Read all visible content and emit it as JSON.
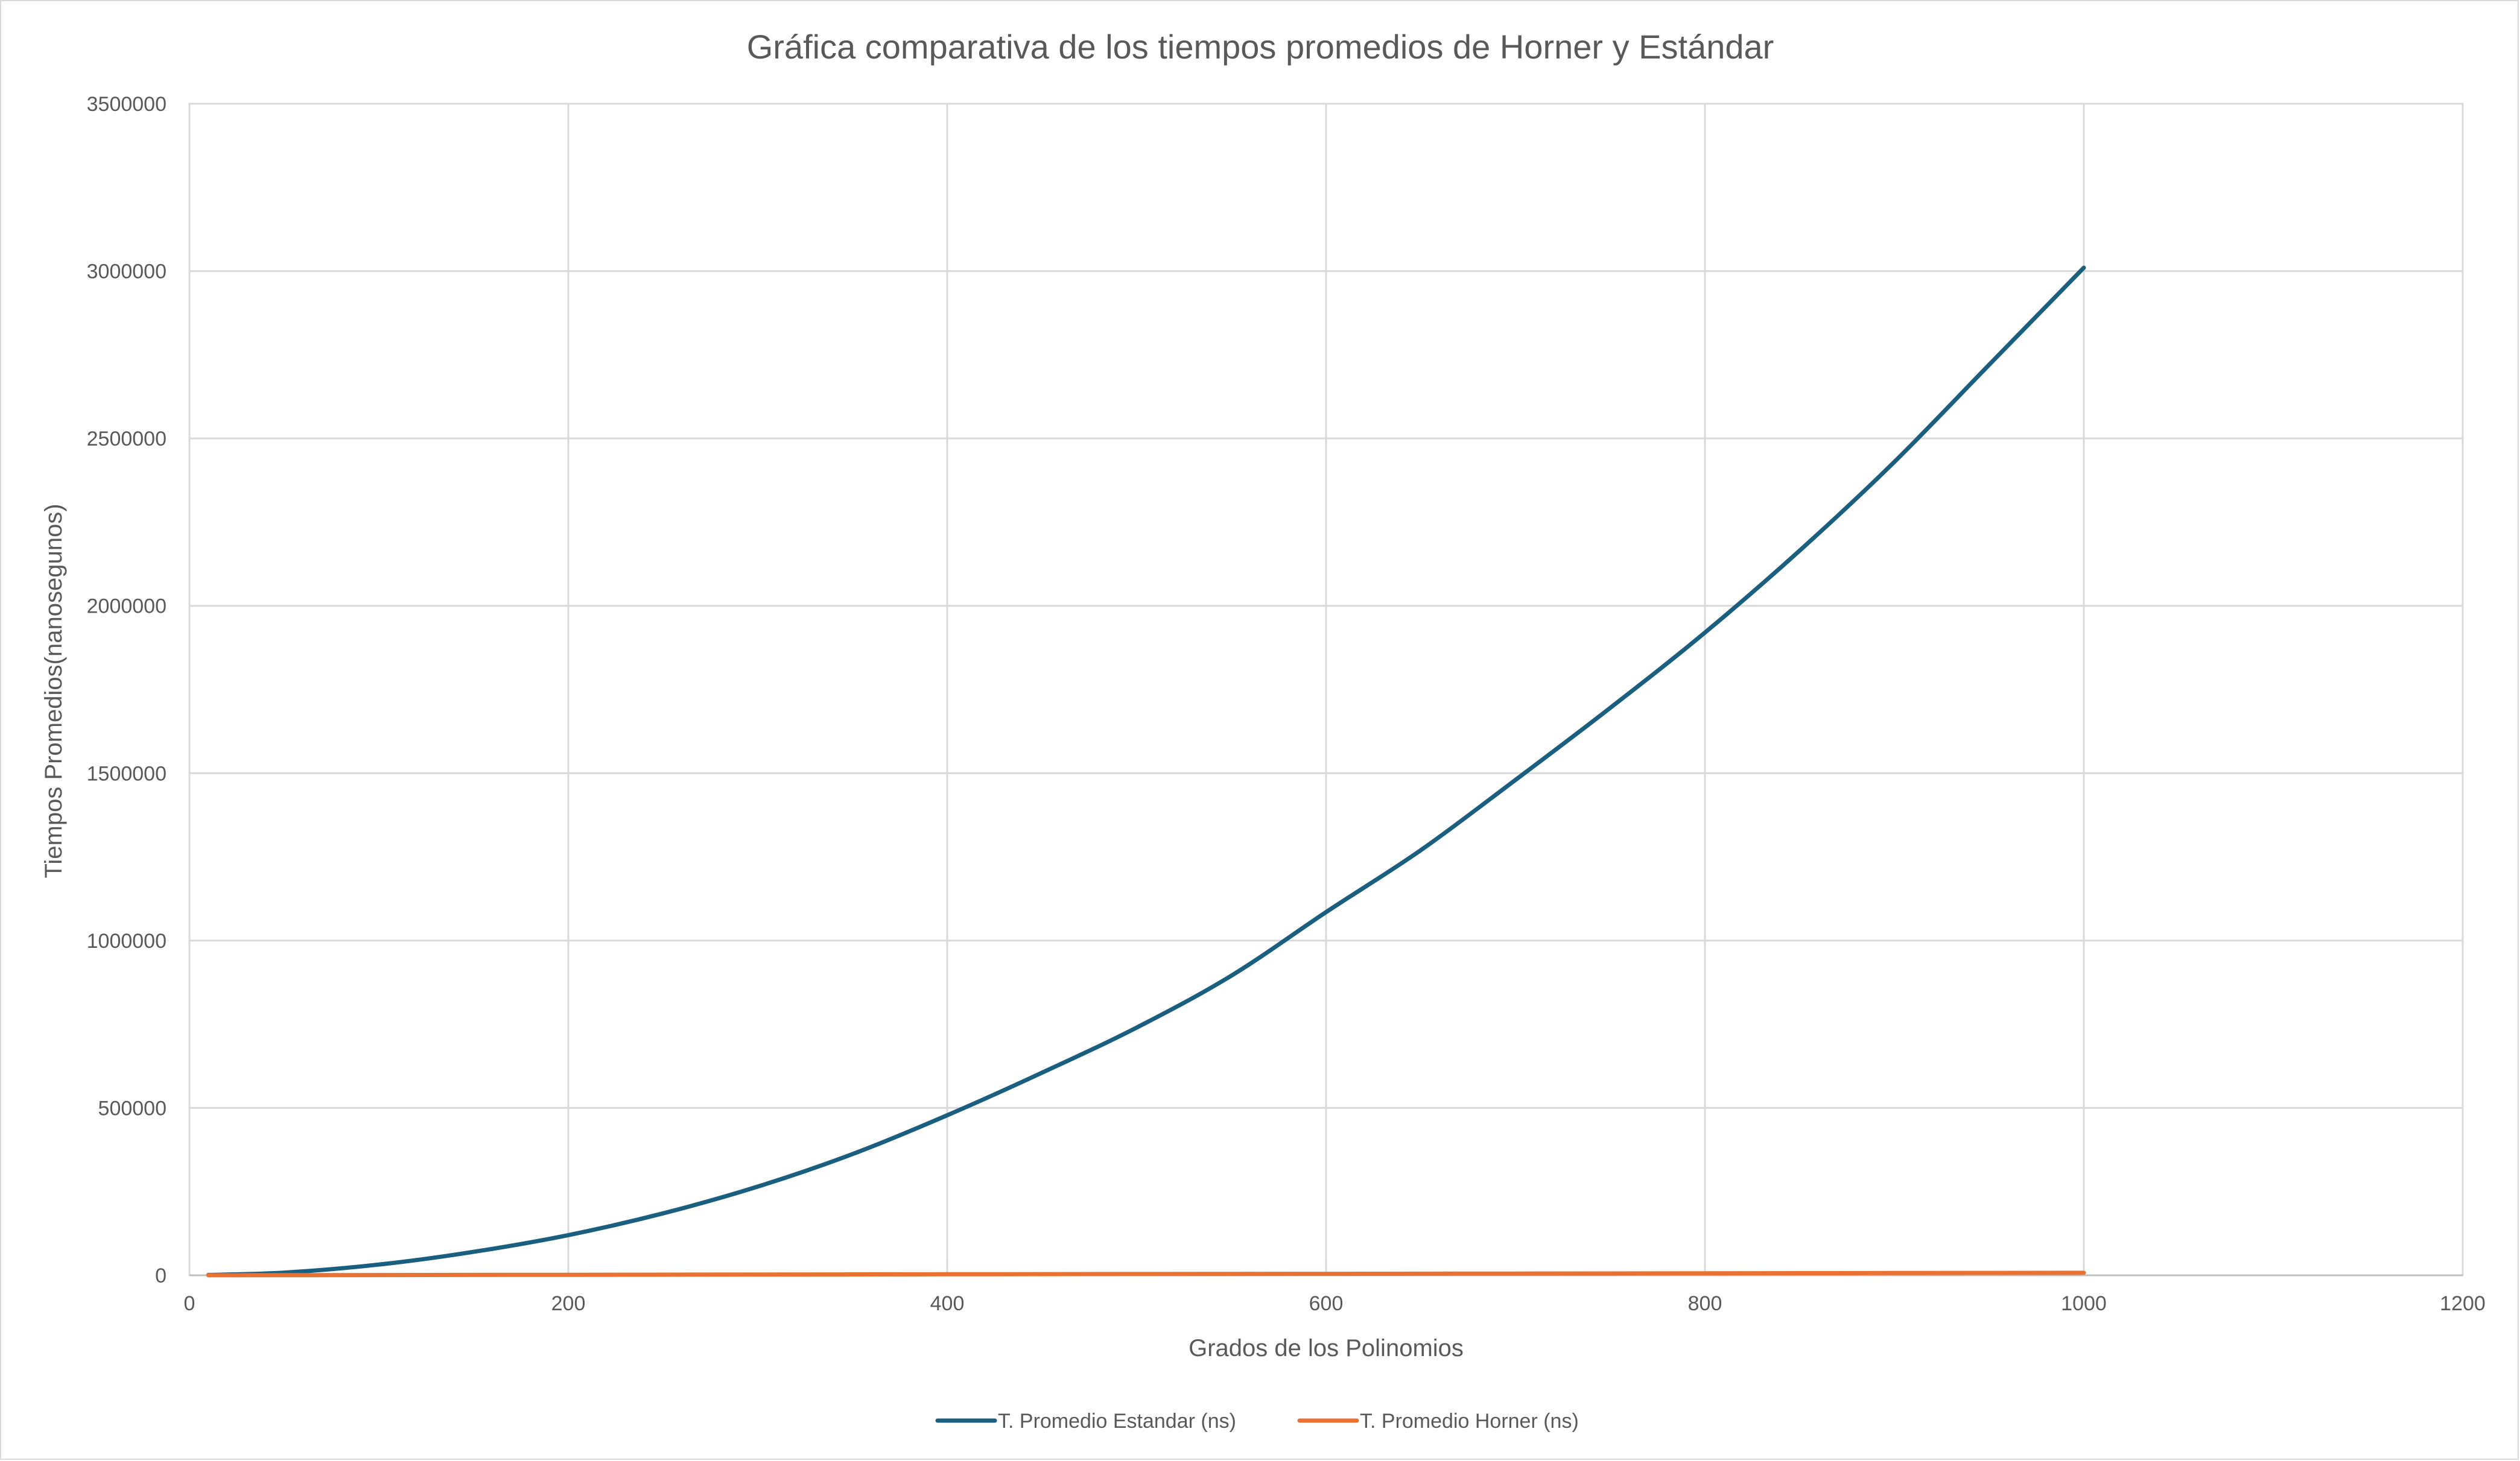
{
  "chart_data": {
    "type": "line",
    "title": "Gráfica comparativa de los tiempos promedios de Horner y Estándar",
    "xlabel": "Grados de los Polinomios",
    "ylabel": "Tiempos Promedios(nanosegunos)",
    "xlim": [
      0,
      1200
    ],
    "ylim": [
      0,
      3500000
    ],
    "x_ticks": [
      0,
      200,
      400,
      600,
      800,
      1000,
      1200
    ],
    "y_ticks": [
      0,
      500000,
      1000000,
      1500000,
      2000000,
      2500000,
      3000000,
      3500000
    ],
    "x_tick_labels": [
      "0",
      "200",
      "400",
      "600",
      "800",
      "1000",
      "1200"
    ],
    "y_tick_labels": [
      "0",
      "500000",
      "1000000",
      "1500000",
      "2000000",
      "2500000",
      "3000000",
      "3500000"
    ],
    "grid": true,
    "legend_position": "bottom",
    "series": [
      {
        "name": "T. Promedio Estandar (ns)",
        "color": "#1a5e80",
        "x": [
          10,
          50,
          100,
          150,
          200,
          250,
          300,
          350,
          400,
          450,
          500,
          550,
          600,
          650,
          700,
          750,
          800,
          850,
          900,
          950,
          1000
        ],
        "values": [
          1000,
          8000,
          32000,
          70000,
          120000,
          185000,
          265000,
          362000,
          478000,
          605000,
          740000,
          895000,
          1085000,
          1270000,
          1480000,
          1695000,
          1920000,
          2165000,
          2430000,
          2720000,
          3010000
        ]
      },
      {
        "name": "T. Promedio Horner (ns)",
        "color": "#e97132",
        "x": [
          10,
          100,
          200,
          300,
          400,
          500,
          600,
          700,
          800,
          900,
          1000
        ],
        "values": [
          100,
          800,
          1500,
          2200,
          3000,
          3700,
          4400,
          5100,
          5900,
          6600,
          7300
        ]
      }
    ]
  }
}
